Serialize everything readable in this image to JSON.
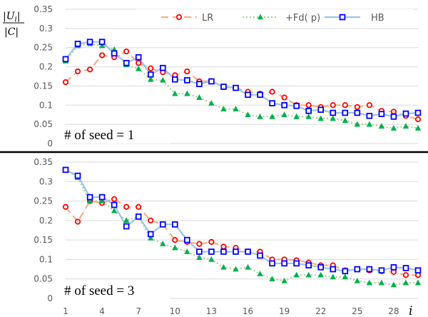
{
  "chart_data": {
    "type": "line",
    "y_axis_label_numerator": "|U",
    "y_axis_label_numerator_sub": "i",
    "y_axis_label_numerator_close": "|",
    "y_axis_label_denominator": "|C|",
    "x_axis_label": "i",
    "x_ticks": [
      "1",
      "4",
      "7",
      "10",
      "13",
      "16",
      "19",
      "22",
      "25",
      "28"
    ],
    "y_ticks": [
      "0",
      "0.05",
      "0.1",
      "0.15",
      "0.2",
      "0.25",
      "0.3",
      "0.35"
    ],
    "ylim": [
      0,
      0.35
    ],
    "xlim": [
      1,
      30
    ],
    "legend": {
      "placement": "top",
      "entries": [
        {
          "name": "LR",
          "color": "#F4B183",
          "marker_color": "#FF0000",
          "marker": "circle",
          "dash": "dashed"
        },
        {
          "name": "+Fd( p)",
          "color": "#A9D18E",
          "marker_color": "#00B050",
          "marker": "triangle",
          "dash": "dotted"
        },
        {
          "name": "HB",
          "color": "#9DC3E6",
          "marker_color": "#0000FF",
          "marker": "square",
          "dash": "solid"
        }
      ]
    },
    "panels": [
      {
        "label": "# of seed = 1",
        "x": [
          1,
          2,
          3,
          4,
          5,
          6,
          7,
          8,
          9,
          10,
          11,
          12,
          13,
          14,
          15,
          16,
          17,
          18,
          19,
          20,
          21,
          22,
          23,
          24,
          25,
          26,
          27,
          28,
          29,
          30
        ],
        "series": [
          {
            "name": "LR",
            "values": [
              0.16,
              0.188,
              0.193,
              0.23,
              0.225,
              0.24,
              0.21,
              0.196,
              0.186,
              0.178,
              0.188,
              0.162,
              0.163,
              0.147,
              0.145,
              0.135,
              0.13,
              0.135,
              0.12,
              0.1,
              0.1,
              0.095,
              0.1,
              0.1,
              0.095,
              0.1,
              0.085,
              0.083,
              0.072,
              0.063
            ]
          },
          {
            "name": "+Fd( p)",
            "values": [
              0.215,
              0.255,
              0.26,
              0.255,
              0.245,
              0.205,
              0.195,
              0.167,
              0.165,
              0.13,
              0.13,
              0.12,
              0.105,
              0.09,
              0.09,
              0.075,
              0.07,
              0.07,
              0.075,
              0.07,
              0.07,
              0.065,
              0.065,
              0.06,
              0.05,
              0.05,
              0.045,
              0.04,
              0.045,
              0.04
            ]
          },
          {
            "name": "HB",
            "values": [
              0.22,
              0.26,
              0.265,
              0.265,
              0.235,
              0.21,
              0.225,
              0.18,
              0.197,
              0.167,
              0.165,
              0.155,
              0.162,
              0.148,
              0.145,
              0.127,
              0.127,
              0.105,
              0.1,
              0.098,
              0.085,
              0.088,
              0.08,
              0.08,
              0.08,
              0.072,
              0.077,
              0.07,
              0.078,
              0.08
            ]
          }
        ]
      },
      {
        "label": "# of seed = 3",
        "x": [
          1,
          2,
          3,
          4,
          5,
          6,
          7,
          8,
          9,
          10,
          11,
          12,
          13,
          14,
          15,
          16,
          17,
          18,
          19,
          20,
          21,
          22,
          23,
          24,
          25,
          26,
          27,
          28,
          29,
          30
        ],
        "series": [
          {
            "name": "LR",
            "values": [
              0.235,
              0.197,
              0.25,
              0.245,
              0.255,
              0.235,
              0.235,
              0.2,
              0.19,
              0.15,
              0.145,
              0.14,
              0.145,
              0.133,
              0.13,
              0.12,
              0.12,
              0.1,
              0.1,
              0.098,
              0.092,
              0.085,
              0.085,
              0.072,
              0.075,
              0.072,
              0.07,
              0.068,
              0.06,
              0.06
            ]
          },
          {
            "name": "+Fd( p)",
            "values": [
              0.33,
              0.31,
              0.25,
              0.25,
              0.225,
              0.2,
              0.21,
              0.155,
              0.14,
              0.13,
              0.12,
              0.105,
              0.1,
              0.08,
              0.075,
              0.08,
              0.063,
              0.05,
              0.045,
              0.06,
              0.06,
              0.06,
              0.055,
              0.055,
              0.045,
              0.04,
              0.04,
              0.035,
              0.04,
              0.04
            ]
          },
          {
            "name": "HB",
            "values": [
              0.33,
              0.315,
              0.26,
              0.26,
              0.24,
              0.185,
              0.21,
              0.165,
              0.19,
              0.19,
              0.15,
              0.12,
              0.12,
              0.12,
              0.12,
              0.12,
              0.11,
              0.09,
              0.09,
              0.09,
              0.085,
              0.08,
              0.075,
              0.07,
              0.075,
              0.075,
              0.072,
              0.08,
              0.078,
              0.072
            ]
          }
        ]
      }
    ]
  }
}
